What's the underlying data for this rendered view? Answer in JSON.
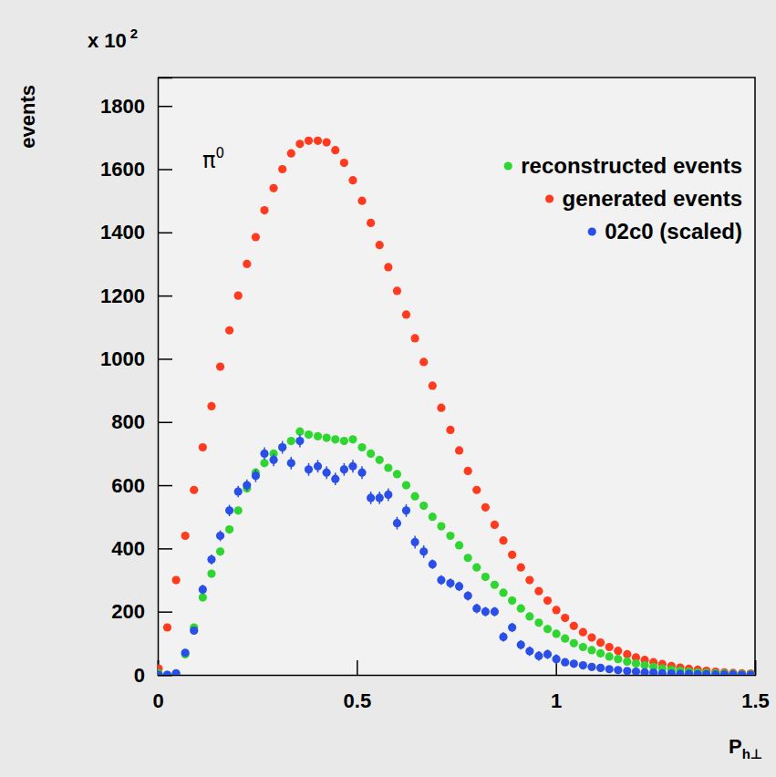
{
  "chart_data": {
    "type": "scatter",
    "y_multiplier": {
      "base": "x 10",
      "sup": "2"
    },
    "ylabel": "events",
    "xlabel": {
      "base": "P",
      "sub": "h⊥"
    },
    "annotation": {
      "base": "π",
      "sup": "0"
    },
    "xlim": [
      0,
      1.5
    ],
    "ylim": [
      0,
      1890
    ],
    "xticks": [
      0,
      0.5,
      1,
      1.5
    ],
    "yticks": [
      0,
      200,
      400,
      600,
      800,
      1000,
      1200,
      1400,
      1600,
      1800
    ],
    "grid": false,
    "legend": "upper right",
    "x": [
      0.002,
      0.024,
      0.046,
      0.069,
      0.091,
      0.113,
      0.135,
      0.157,
      0.18,
      0.202,
      0.224,
      0.246,
      0.268,
      0.291,
      0.313,
      0.335,
      0.357,
      0.379,
      0.402,
      0.424,
      0.446,
      0.468,
      0.49,
      0.513,
      0.535,
      0.557,
      0.579,
      0.601,
      0.624,
      0.646,
      0.668,
      0.69,
      0.712,
      0.735,
      0.757,
      0.779,
      0.801,
      0.823,
      0.846,
      0.868,
      0.89,
      0.912,
      0.934,
      0.957,
      0.979,
      1.001,
      1.023,
      1.045,
      1.068,
      1.09,
      1.112,
      1.134,
      1.156,
      1.179,
      1.201,
      1.223,
      1.245,
      1.267,
      1.29,
      1.312,
      1.334,
      1.356,
      1.378,
      1.401,
      1.423,
      1.445,
      1.467,
      1.489
    ],
    "series": [
      {
        "name": "reconstructed events",
        "color": "#2fd62f",
        "marker": "circle",
        "values": [
          5,
          0,
          3,
          65,
          150,
          245,
          320,
          390,
          460,
          520,
          590,
          640,
          670,
          700,
          720,
          740,
          770,
          760,
          755,
          750,
          745,
          740,
          745,
          720,
          700,
          680,
          655,
          635,
          600,
          565,
          535,
          500,
          470,
          440,
          410,
          370,
          340,
          310,
          285,
          260,
          235,
          210,
          185,
          165,
          145,
          130,
          115,
          100,
          88,
          78,
          68,
          58,
          50,
          42,
          36,
          30,
          25,
          20,
          16,
          13,
          10,
          8,
          6,
          5,
          4,
          3,
          2,
          2
        ]
      },
      {
        "name": "generated events",
        "color": "#ff3a1e",
        "marker": "circle",
        "values": [
          20,
          150,
          300,
          440,
          585,
          720,
          850,
          975,
          1090,
          1200,
          1300,
          1385,
          1470,
          1540,
          1600,
          1650,
          1680,
          1690,
          1690,
          1685,
          1660,
          1620,
          1565,
          1500,
          1430,
          1360,
          1290,
          1215,
          1140,
          1065,
          990,
          915,
          845,
          775,
          710,
          645,
          585,
          530,
          475,
          425,
          380,
          340,
          300,
          265,
          235,
          205,
          180,
          155,
          135,
          118,
          102,
          88,
          76,
          65,
          55,
          47,
          40,
          34,
          28,
          23,
          19,
          16,
          13,
          10,
          8,
          6,
          5,
          4
        ]
      },
      {
        "name": "02c0 (scaled)",
        "color": "#2a4fe8",
        "marker": "circle",
        "values": [
          0,
          0,
          5,
          70,
          140,
          270,
          365,
          440,
          520,
          580,
          600,
          630,
          700,
          680,
          720,
          670,
          740,
          650,
          660,
          640,
          620,
          650,
          660,
          640,
          560,
          560,
          570,
          480,
          520,
          420,
          390,
          350,
          300,
          290,
          280,
          250,
          210,
          200,
          200,
          120,
          150,
          95,
          75,
          60,
          65,
          50,
          40,
          35,
          30,
          25,
          22,
          18,
          15,
          12,
          10,
          8,
          7,
          5,
          4,
          3,
          3,
          2,
          2,
          1,
          1,
          1,
          0,
          0
        ],
        "errors": [
          2,
          2,
          3,
          10,
          12,
          15,
          16,
          17,
          18,
          18,
          18,
          20,
          20,
          20,
          20,
          20,
          20,
          20,
          20,
          20,
          20,
          20,
          20,
          20,
          20,
          20,
          20,
          20,
          20,
          20,
          20,
          15,
          15,
          15,
          15,
          15,
          15,
          15,
          15,
          15,
          15,
          15,
          15,
          15,
          15,
          15,
          8,
          8,
          7,
          7,
          6,
          6,
          5,
          5,
          5,
          4,
          4,
          3,
          3,
          3,
          2,
          2,
          2,
          2,
          1,
          1,
          1,
          1
        ]
      }
    ]
  }
}
